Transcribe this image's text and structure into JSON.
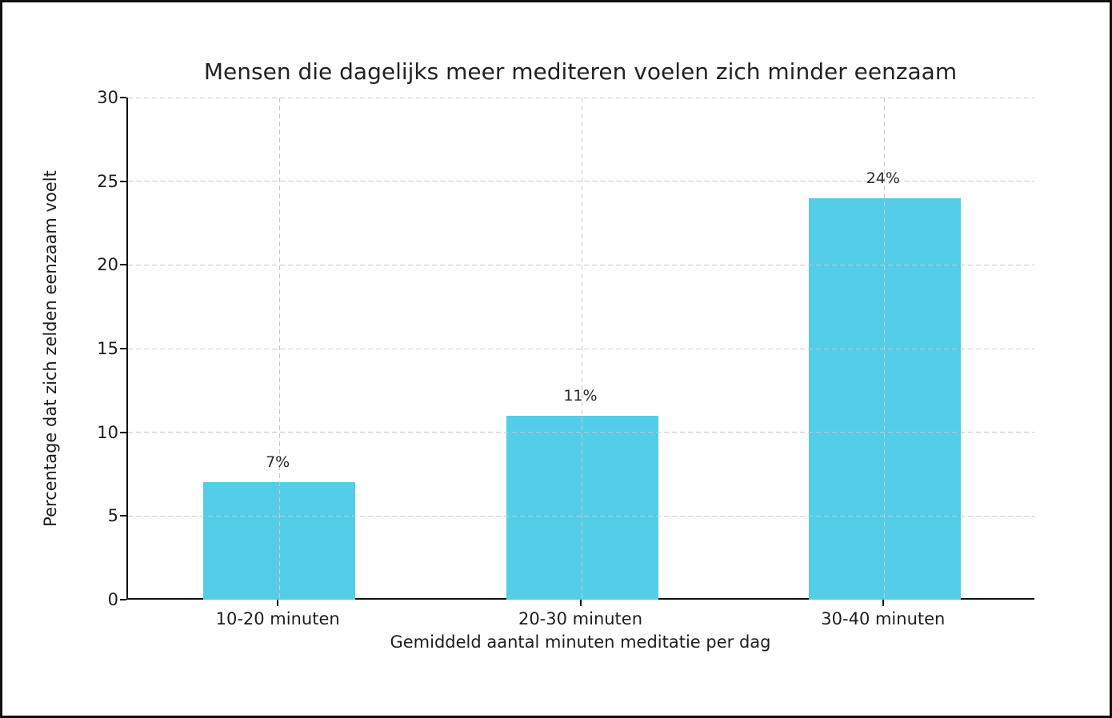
{
  "chart_data": {
    "type": "bar",
    "title": "Mensen die dagelijks meer mediteren voelen zich minder eenzaam",
    "xlabel": "Gemiddeld aantal minuten meditatie per dag",
    "ylabel": "Percentage dat zich zelden eenzaam voelt",
    "categories": [
      "10-20 minuten",
      "20-30 minuten",
      "30-40 minuten"
    ],
    "values": [
      7,
      11,
      24
    ],
    "bar_labels": [
      "7%",
      "11%",
      "24%"
    ],
    "ylim": [
      0,
      30
    ],
    "yticks": [
      0,
      5,
      10,
      15,
      20,
      25,
      30
    ],
    "grid": "dashed, horizontal at y-ticks and vertical at bar centers, drawn over bars",
    "legend": "none",
    "bar_color": "#54cde9",
    "grid_color": "#c9c9c9",
    "text_color": "#1d1d1d",
    "spine_color": "#111111"
  }
}
